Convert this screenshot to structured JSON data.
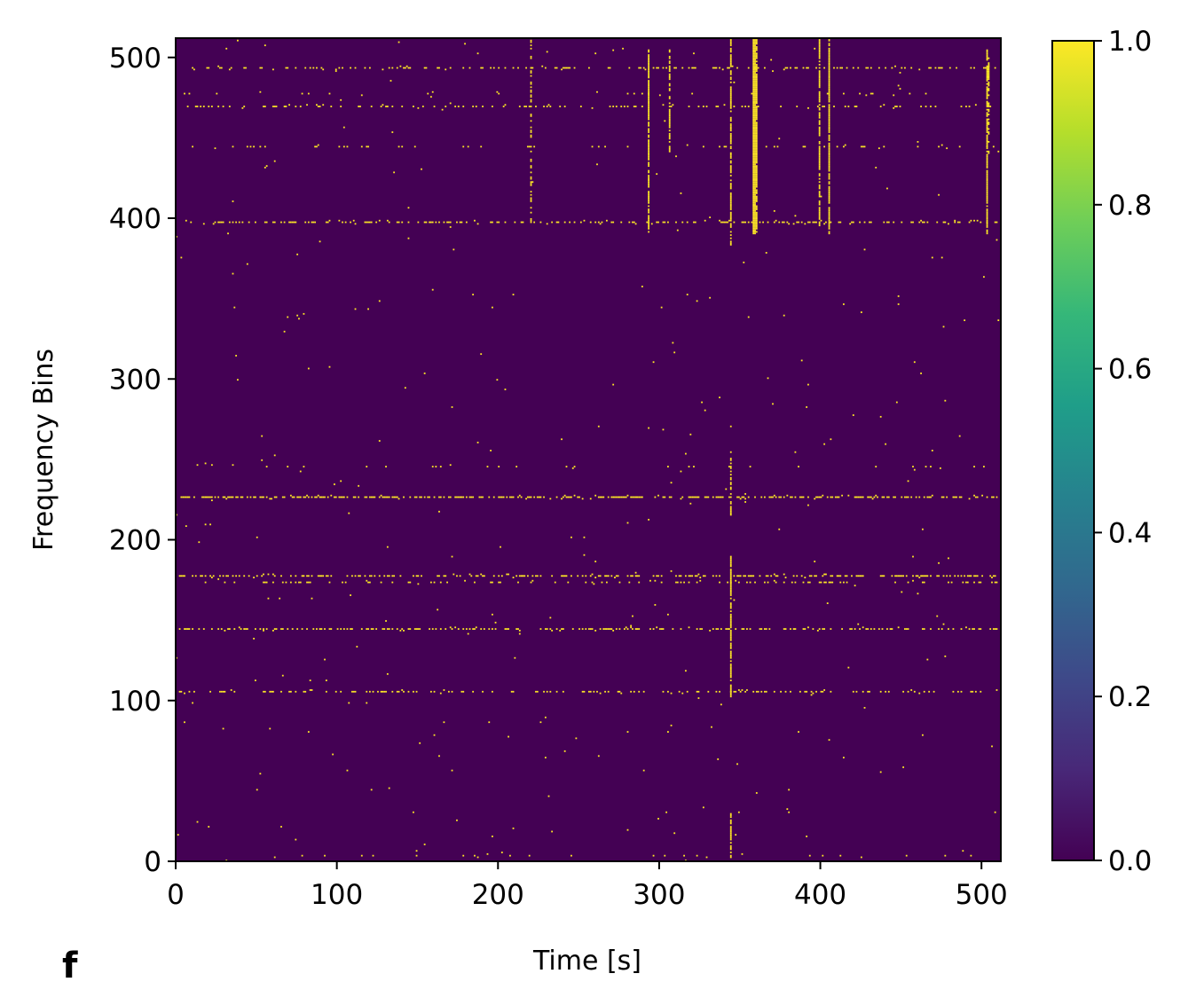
{
  "panel_label": "f",
  "chart_data": {
    "type": "heatmap",
    "title": "",
    "xlabel": "Time [s]",
    "ylabel": "Frequency Bins",
    "xlim": [
      0,
      512
    ],
    "ylim": [
      0,
      512
    ],
    "x_ticks": [
      0,
      100,
      200,
      300,
      400,
      500
    ],
    "y_ticks": [
      0,
      100,
      200,
      300,
      400,
      500
    ],
    "colormap": "viridis",
    "background_value": 0.0,
    "colorbar": {
      "min": 0.0,
      "max": 1.0,
      "ticks": [
        "0.0",
        "0.2",
        "0.4",
        "0.6",
        "0.8",
        "1.0"
      ]
    },
    "colors": {
      "low": "#440154",
      "high": "#fde725"
    },
    "active_value": 1.0,
    "horizontal_bands": [
      {
        "freq": 493,
        "x_start": 5,
        "x_end": 510,
        "density": 0.3
      },
      {
        "freq": 477,
        "x_start": 5,
        "x_end": 510,
        "density": 0.06
      },
      {
        "freq": 469,
        "x_start": 5,
        "x_end": 510,
        "density": 0.22
      },
      {
        "freq": 444,
        "x_start": 5,
        "x_end": 510,
        "density": 0.1
      },
      {
        "freq": 397,
        "x_start": 5,
        "x_end": 510,
        "density": 0.35
      },
      {
        "freq": 245,
        "x_start": 5,
        "x_end": 510,
        "density": 0.05
      },
      {
        "freq": 226,
        "x_start": 2,
        "x_end": 510,
        "density": 0.55
      },
      {
        "freq": 177,
        "x_start": 2,
        "x_end": 510,
        "density": 0.45
      },
      {
        "freq": 173,
        "x_start": 30,
        "x_end": 510,
        "density": 0.18
      },
      {
        "freq": 144,
        "x_start": 2,
        "x_end": 510,
        "density": 0.42
      },
      {
        "freq": 105,
        "x_start": 2,
        "x_end": 510,
        "density": 0.3
      },
      {
        "freq": 3,
        "x_start": 2,
        "x_end": 510,
        "density": 0.06
      }
    ],
    "vertical_lines": [
      {
        "time": 220,
        "f_start": 395,
        "f_end": 512,
        "density": 0.4
      },
      {
        "time": 293,
        "f_start": 390,
        "f_end": 505,
        "density": 0.85
      },
      {
        "time": 306,
        "f_start": 440,
        "f_end": 505,
        "density": 0.6
      },
      {
        "time": 344,
        "f_start": 383,
        "f_end": 512,
        "density": 0.75
      },
      {
        "time": 344,
        "f_start": 102,
        "f_end": 190,
        "density": 0.8
      },
      {
        "time": 344,
        "f_start": 215,
        "f_end": 255,
        "density": 0.7
      },
      {
        "time": 344,
        "f_start": 2,
        "f_end": 30,
        "density": 0.9
      },
      {
        "time": 358,
        "f_start": 390,
        "f_end": 512,
        "density": 1.0
      },
      {
        "time": 359,
        "f_start": 390,
        "f_end": 512,
        "density": 1.0
      },
      {
        "time": 360,
        "f_start": 390,
        "f_end": 512,
        "density": 0.9
      },
      {
        "time": 399,
        "f_start": 395,
        "f_end": 512,
        "density": 0.8
      },
      {
        "time": 405,
        "f_start": 390,
        "f_end": 512,
        "density": 0.85
      },
      {
        "time": 503,
        "f_start": 390,
        "f_end": 505,
        "density": 0.85
      },
      {
        "time": 504,
        "f_start": 440,
        "f_end": 500,
        "density": 0.6
      }
    ],
    "scatter_density": 0.0012,
    "random_seed": 7
  }
}
